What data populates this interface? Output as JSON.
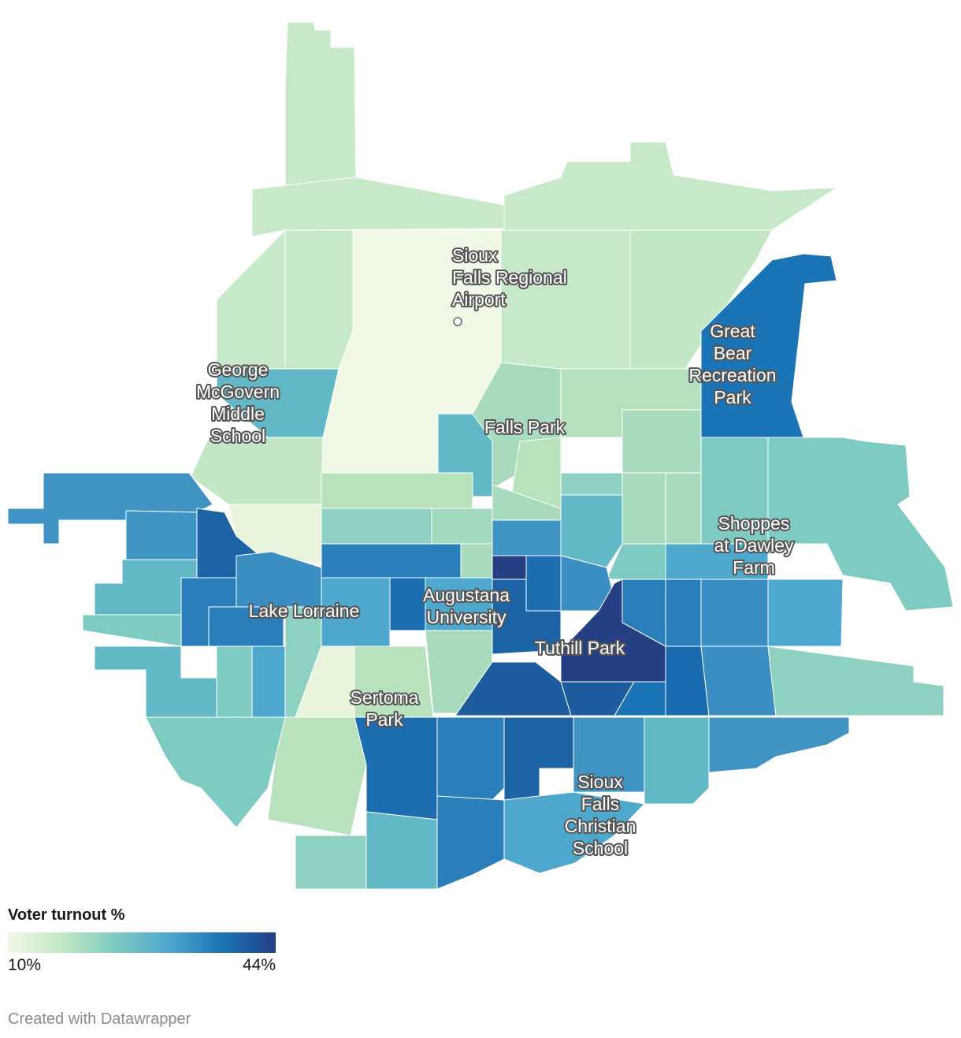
{
  "legend": {
    "title": "Voter turnout %",
    "min_label": "10%",
    "max_label": "44%",
    "min_value": 10,
    "max_value": 44,
    "colors": [
      "#f2f9e9",
      "#c3e7c5",
      "#7ecbc2",
      "#4ea7cc",
      "#1a74b5",
      "#253f85"
    ]
  },
  "places": [
    {
      "id": "airport",
      "lines": [
        "Sioux",
        "Falls Regional",
        "Airport"
      ]
    },
    {
      "id": "great-bear",
      "lines": [
        "Great",
        "Bear",
        "Recreation",
        "Park"
      ]
    },
    {
      "id": "mcgovern",
      "lines": [
        "George",
        "McGovern",
        "Middle",
        "School"
      ]
    },
    {
      "id": "falls-park",
      "lines": [
        "Falls Park"
      ]
    },
    {
      "id": "shoppes",
      "lines": [
        "Shoppes",
        "at Dawley",
        "Farm"
      ]
    },
    {
      "id": "lake-lorraine",
      "lines": [
        "Lake Lorraine"
      ]
    },
    {
      "id": "augustana",
      "lines": [
        "Augustana",
        "University"
      ]
    },
    {
      "id": "tuthill",
      "lines": [
        "Tuthill Park"
      ]
    },
    {
      "id": "sertoma",
      "lines": [
        "Sertoma",
        "Park"
      ]
    },
    {
      "id": "christian-school",
      "lines": [
        "Sioux",
        "Falls",
        "Christian",
        "School"
      ]
    }
  ],
  "credit": "Created with Datawrapper"
}
